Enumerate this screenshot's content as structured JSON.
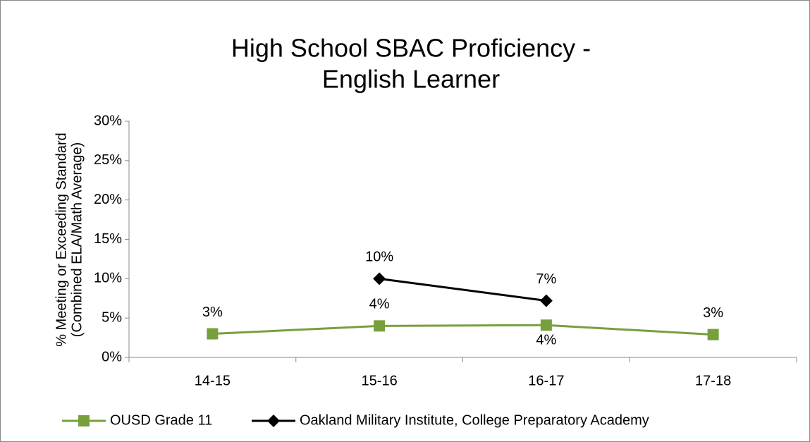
{
  "chart_data": {
    "type": "line",
    "title": [
      "High School SBAC Proficiency -",
      "English Learner"
    ],
    "ylabel": [
      "% Meeting or Exceeding Standard",
      "(Combined ELA/Math Average)"
    ],
    "categories": [
      "14-15",
      "15-16",
      "16-17",
      "17-18"
    ],
    "series": [
      {
        "name": "OUSD Grade 11",
        "color": "#77a03c",
        "marker": "square",
        "values": [
          3.0,
          4.0,
          4.1,
          2.9
        ],
        "value_labels": [
          "3%",
          "4%",
          "4%",
          "3%"
        ]
      },
      {
        "name": "Oakland Military Institute, College Preparatory Academy",
        "color": "#000000",
        "marker": "diamond",
        "values": [
          null,
          10.0,
          7.2,
          null
        ],
        "value_labels": [
          null,
          "10%",
          "7%",
          null
        ]
      }
    ],
    "ylim": [
      0,
      30
    ],
    "yticks": [
      {
        "value": 0,
        "label": "0%"
      },
      {
        "value": 5,
        "label": "5%"
      },
      {
        "value": 10,
        "label": "10%"
      },
      {
        "value": 15,
        "label": "15%"
      },
      {
        "value": 20,
        "label": "20%"
      },
      {
        "value": 25,
        "label": "25%"
      },
      {
        "value": 30,
        "label": "30%"
      }
    ],
    "grid": false,
    "legend": "bottom"
  }
}
